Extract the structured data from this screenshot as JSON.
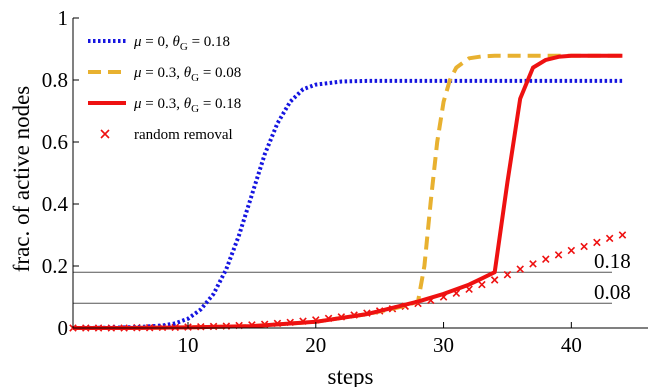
{
  "chart_data": {
    "type": "line",
    "xlabel": "steps",
    "ylabel": "frac. of active nodes",
    "xlim": [
      1,
      46
    ],
    "ylim": [
      0,
      1
    ],
    "xticks": [
      10,
      20,
      30,
      40
    ],
    "yticks": [
      0,
      0.2,
      0.4,
      0.6,
      0.8,
      1
    ],
    "ytick_labels": [
      "0",
      "0.2",
      "0.4",
      "0.6",
      "0.8",
      "1"
    ],
    "legend_position": "top-left",
    "series": [
      {
        "name": "μ = 0, θ_G = 0.18",
        "legend": {
          "pre1": "μ",
          "mid1": " = 0, ",
          "pre2": "θ",
          "sub": "G",
          "post": " = 0.18"
        },
        "style": "dotted",
        "color": "#1515e0",
        "x": [
          1,
          4,
          6,
          8,
          9,
          10,
          11,
          12,
          13,
          14,
          15,
          16,
          17,
          18,
          19,
          20,
          21,
          22,
          24,
          26,
          30,
          35,
          40,
          44
        ],
        "y": [
          0.0,
          0.001,
          0.003,
          0.008,
          0.015,
          0.03,
          0.06,
          0.11,
          0.19,
          0.3,
          0.43,
          0.56,
          0.66,
          0.73,
          0.77,
          0.785,
          0.79,
          0.795,
          0.797,
          0.797,
          0.797,
          0.797,
          0.797,
          0.797
        ]
      },
      {
        "name": "μ = 0.3, θ_G = 0.08",
        "legend": {
          "pre1": "μ",
          "mid1": " = 0.3, ",
          "pre2": "θ",
          "sub": "G",
          "post": " = 0.08"
        },
        "style": "dashed",
        "color": "#e8b130",
        "x": [
          1,
          5,
          10,
          15,
          20,
          24,
          26,
          27,
          28,
          28.5,
          29,
          29.5,
          30,
          30.5,
          31,
          32,
          33,
          34,
          36,
          38,
          40,
          44
        ],
        "y": [
          0.0,
          0.0,
          0.002,
          0.006,
          0.02,
          0.045,
          0.062,
          0.072,
          0.085,
          0.2,
          0.41,
          0.6,
          0.73,
          0.8,
          0.84,
          0.87,
          0.876,
          0.878,
          0.878,
          0.878,
          0.878,
          0.878
        ]
      },
      {
        "name": "μ = 0.3, θ_G = 0.18",
        "legend": {
          "pre1": "μ",
          "mid1": " = 0.3, ",
          "pre2": "θ",
          "sub": "G",
          "post": " = 0.18"
        },
        "style": "solid",
        "color": "#ee1111",
        "x": [
          1,
          5,
          10,
          15,
          20,
          24,
          28,
          30,
          32,
          33,
          34,
          35,
          36,
          37,
          38,
          39,
          40,
          42,
          44
        ],
        "y": [
          0.0,
          0.0,
          0.002,
          0.006,
          0.02,
          0.045,
          0.085,
          0.11,
          0.14,
          0.16,
          0.18,
          0.47,
          0.74,
          0.84,
          0.865,
          0.875,
          0.878,
          0.878,
          0.878
        ]
      },
      {
        "name": "random removal",
        "legend": {
          "pre1": "",
          "mid1": "random removal",
          "pre2": "",
          "sub": "",
          "post": ""
        },
        "style": "markers",
        "color": "#ee1111",
        "x": [
          1,
          2,
          3,
          4,
          5,
          6,
          7,
          8,
          9,
          10,
          11,
          12,
          13,
          14,
          15,
          16,
          17,
          18,
          19,
          20,
          21,
          22,
          23,
          24,
          25,
          26,
          27,
          28,
          29,
          30,
          31,
          32,
          33,
          34,
          35,
          36,
          37,
          38,
          39,
          40,
          41,
          42,
          43,
          44
        ],
        "y": [
          0.0,
          0.0,
          0.0,
          0.0,
          0.0,
          0.001,
          0.001,
          0.002,
          0.002,
          0.003,
          0.004,
          0.005,
          0.006,
          0.008,
          0.01,
          0.012,
          0.015,
          0.018,
          0.022,
          0.026,
          0.031,
          0.036,
          0.042,
          0.048,
          0.055,
          0.062,
          0.07,
          0.079,
          0.089,
          0.1,
          0.112,
          0.125,
          0.14,
          0.155,
          0.172,
          0.19,
          0.207,
          0.222,
          0.236,
          0.25,
          0.263,
          0.276,
          0.289,
          0.3
        ]
      }
    ],
    "reference_lines": [
      {
        "y": 0.18,
        "label": "0.18",
        "color": "#555555"
      },
      {
        "y": 0.08,
        "label": "0.08",
        "color": "#555555"
      }
    ]
  }
}
